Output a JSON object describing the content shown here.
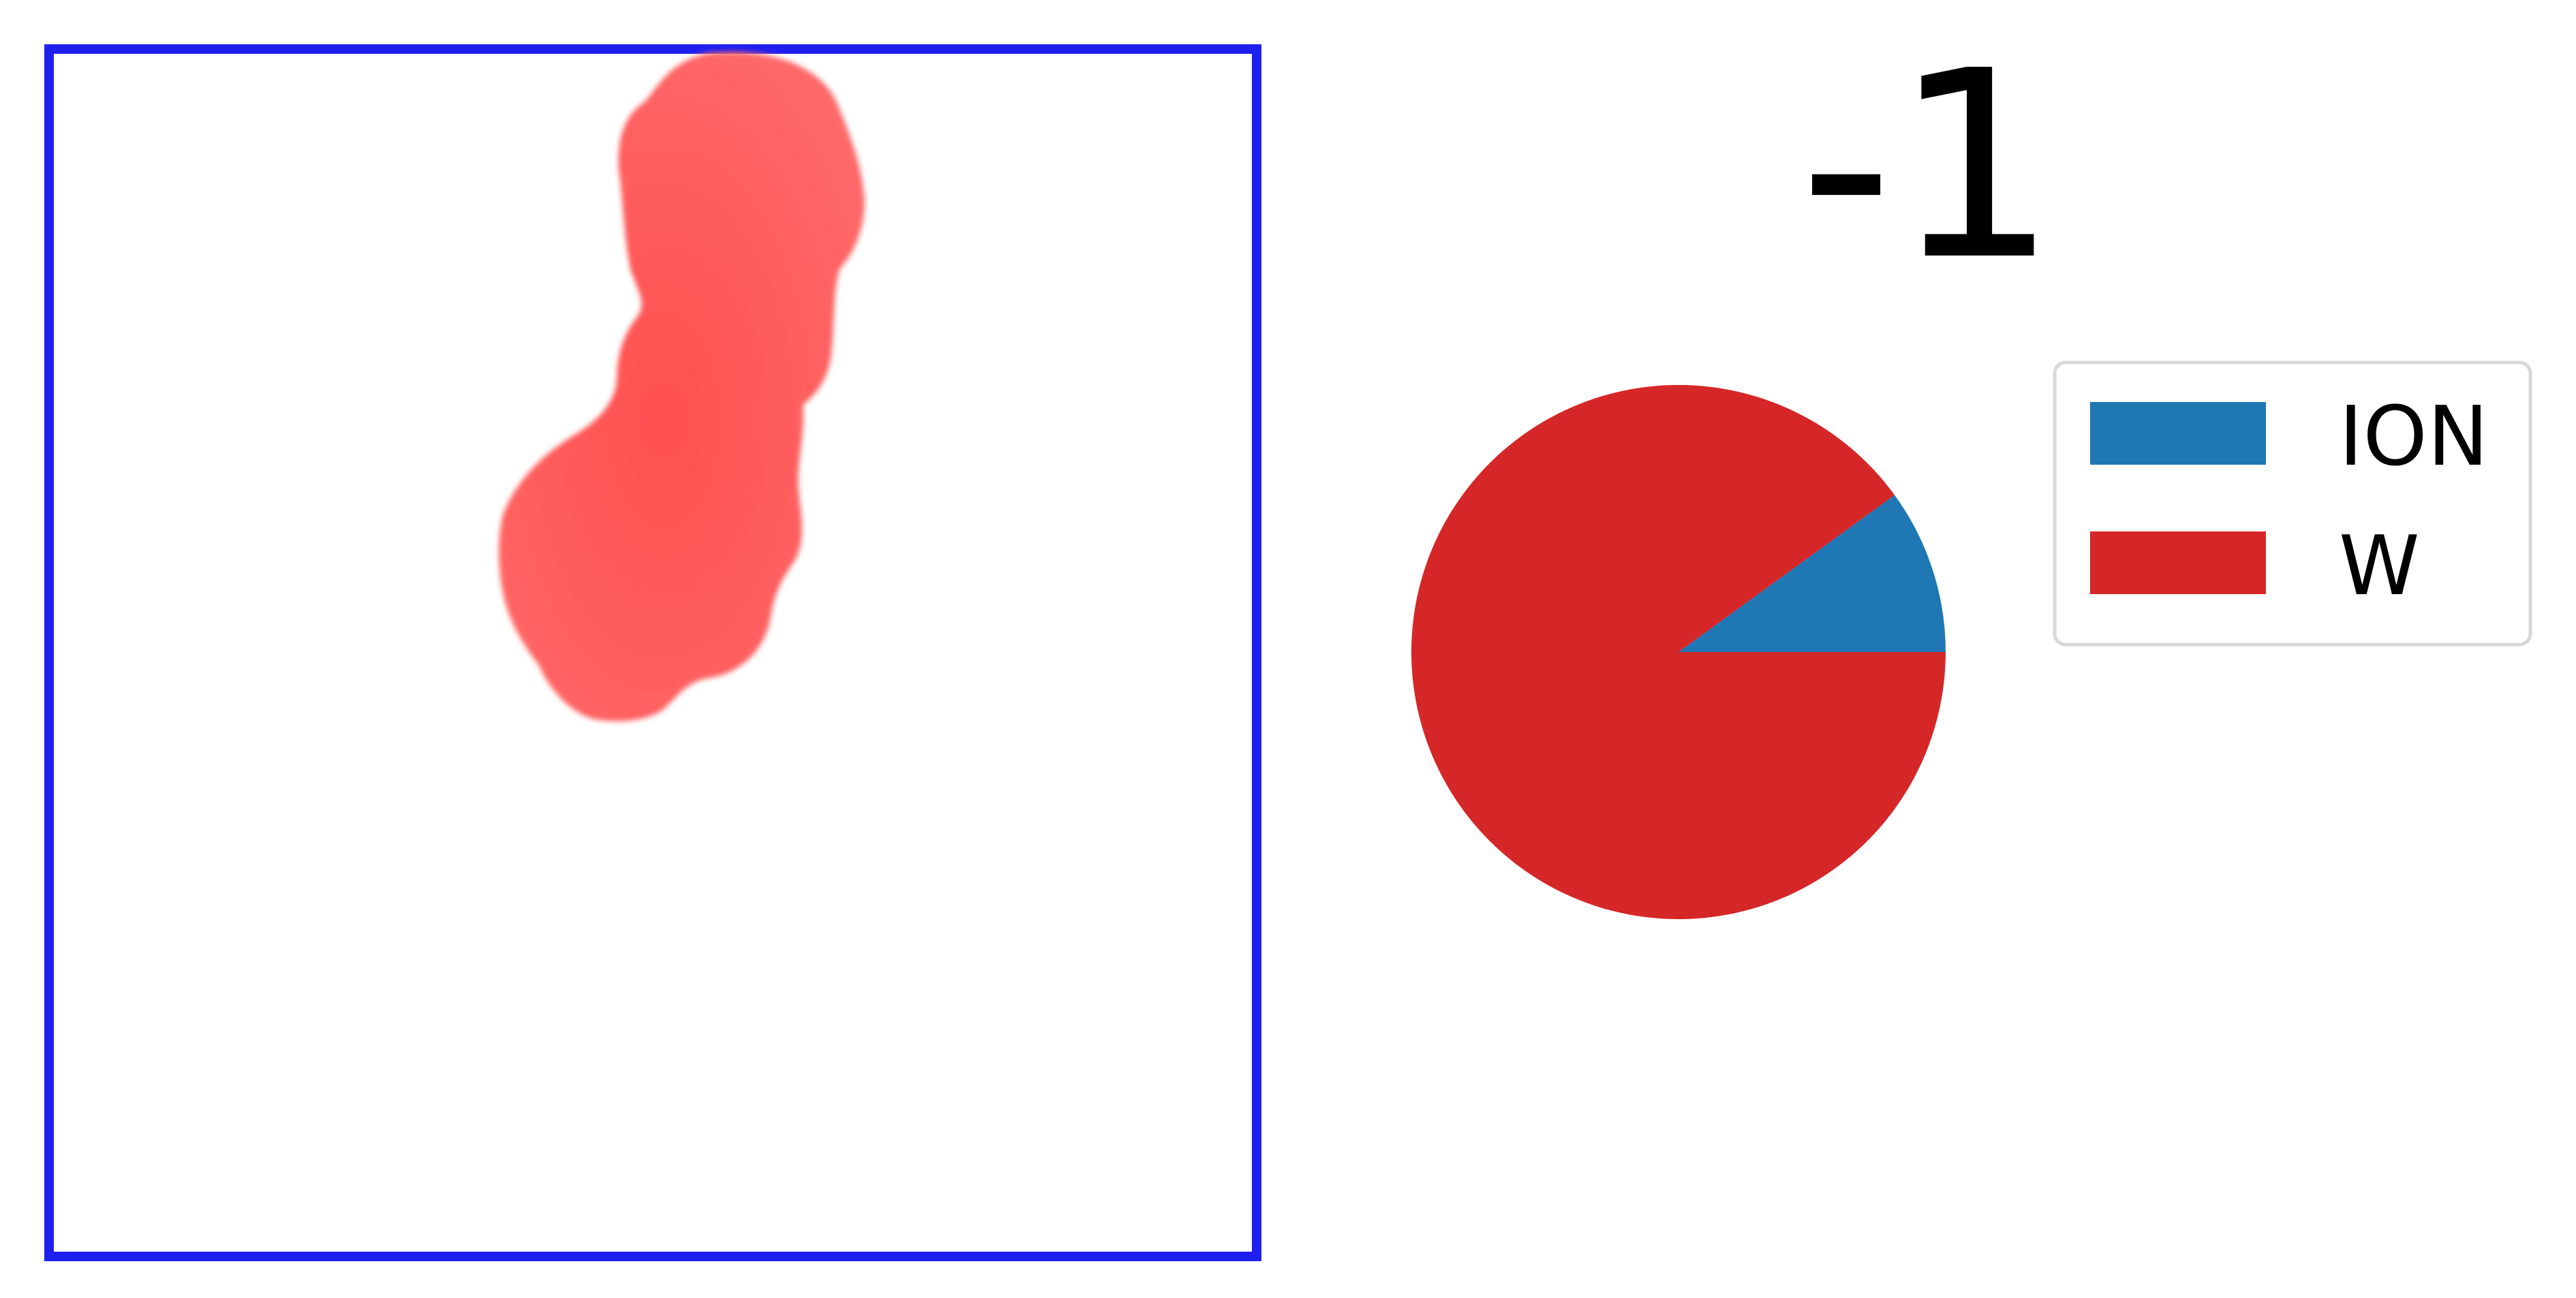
{
  "colors": {
    "box": "#1f1ff0",
    "blob": "#ff5a5a",
    "ion": "#1f77b4",
    "w": "#d62728"
  },
  "annotation": "-1",
  "chart_data": {
    "type": "pie",
    "title": "",
    "slices": [
      {
        "label": "ION",
        "value": 0.1,
        "color": "#1f77b4"
      },
      {
        "label": "W",
        "value": 0.9,
        "color": "#d62728"
      }
    ],
    "start_angle_deg": 0,
    "direction": "counterclockwise",
    "legend_position": "right"
  }
}
